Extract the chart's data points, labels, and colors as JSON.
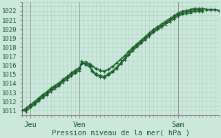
{
  "title": "Pression niveau de la mer( hPa )",
  "bg_color": "#cce8dc",
  "grid_color": "#aacfbe",
  "line_color": "#1a5c2a",
  "ylim": [
    1011,
    1022.5
  ],
  "ytick_vals": [
    1011,
    1012,
    1013,
    1014,
    1015,
    1016,
    1017,
    1018,
    1019,
    1020,
    1021,
    1022
  ],
  "xmax": 192,
  "day_ticks": [
    8,
    56,
    152
  ],
  "day_labels": [
    "Jeu",
    "Ven",
    "Sam"
  ],
  "day_vlines": [
    8,
    56,
    152
  ],
  "xlabel_fontsize": 7.5,
  "ylabel_fontsize": 6.5,
  "series": [
    {
      "x": [
        0,
        4,
        8,
        12,
        16,
        20,
        24,
        28,
        32,
        36,
        40,
        44,
        48,
        52,
        56,
        58,
        62,
        66,
        68,
        72,
        76,
        80,
        84,
        88,
        92,
        96,
        100,
        104,
        108,
        112,
        116,
        120,
        124,
        128,
        132,
        136,
        140,
        144,
        148,
        152,
        156,
        160,
        164,
        168,
        172,
        176,
        180,
        184,
        188,
        192
      ],
      "y": [
        1011.0,
        1011.3,
        1011.7,
        1012.0,
        1012.4,
        1012.8,
        1013.1,
        1013.5,
        1013.8,
        1014.1,
        1014.5,
        1014.8,
        1015.2,
        1015.5,
        1015.8,
        1016.2,
        1016.4,
        1016.2,
        1016.0,
        1015.7,
        1015.5,
        1015.4,
        1015.6,
        1015.9,
        1016.3,
        1016.7,
        1017.1,
        1017.6,
        1018.0,
        1018.4,
        1018.8,
        1019.2,
        1019.6,
        1020.0,
        1020.3,
        1020.6,
        1020.9,
        1021.2,
        1021.5,
        1021.8,
        1022.0,
        1022.1,
        1022.2,
        1022.3,
        1022.3,
        1022.3,
        1022.2,
        1022.2,
        1022.2,
        1022.1
      ]
    },
    {
      "x": [
        0,
        4,
        8,
        12,
        16,
        20,
        24,
        28,
        32,
        36,
        40,
        44,
        48,
        52,
        56,
        58,
        62,
        66,
        68,
        72,
        76,
        80,
        84,
        88,
        92,
        96,
        100,
        104,
        108,
        112,
        116,
        120,
        124,
        128,
        132,
        136,
        140,
        144,
        148,
        152,
        156,
        160,
        164,
        168,
        172,
        176,
        180,
        184,
        188,
        192
      ],
      "y": [
        1011.0,
        1011.2,
        1011.6,
        1011.9,
        1012.3,
        1012.7,
        1013.0,
        1013.4,
        1013.7,
        1014.0,
        1014.4,
        1014.7,
        1015.1,
        1015.4,
        1015.7,
        1016.1,
        1016.3,
        1016.1,
        1015.9,
        1015.6,
        1015.4,
        1015.3,
        1015.5,
        1015.8,
        1016.2,
        1016.6,
        1017.0,
        1017.5,
        1017.9,
        1018.3,
        1018.7,
        1019.1,
        1019.5,
        1019.9,
        1020.2,
        1020.5,
        1020.8,
        1021.1,
        1021.4,
        1021.7,
        1021.9,
        1022.0,
        1022.1,
        1022.2,
        1022.2,
        1022.2,
        1022.1,
        1022.1,
        1022.1,
        1022.0
      ]
    },
    {
      "x": [
        0,
        4,
        8,
        12,
        16,
        20,
        24,
        28,
        32,
        36,
        40,
        44,
        48,
        52,
        56,
        58,
        62,
        66,
        68,
        72,
        76,
        80,
        84,
        88,
        92,
        96,
        100,
        104,
        108,
        112,
        116,
        120,
        124,
        128,
        132,
        136,
        140,
        144,
        148,
        152,
        156,
        160,
        164,
        168,
        172,
        176
      ],
      "y": [
        1011.0,
        1011.1,
        1011.5,
        1011.8,
        1012.2,
        1012.6,
        1012.9,
        1013.3,
        1013.6,
        1013.9,
        1014.3,
        1014.6,
        1015.0,
        1015.3,
        1015.6,
        1016.3,
        1016.2,
        1016.0,
        1015.5,
        1015.1,
        1014.9,
        1014.8,
        1015.1,
        1015.4,
        1015.8,
        1016.3,
        1016.8,
        1017.3,
        1017.8,
        1018.2,
        1018.6,
        1019.0,
        1019.4,
        1019.8,
        1020.1,
        1020.4,
        1020.7,
        1021.0,
        1021.3,
        1021.6,
        1021.8,
        1021.9,
        1022.0,
        1022.1,
        1022.1,
        1022.1
      ]
    },
    {
      "x": [
        0,
        4,
        8,
        12,
        16,
        20,
        24,
        28,
        32,
        36,
        40,
        44,
        48,
        52,
        56,
        58,
        62,
        66,
        68,
        72,
        76,
        80,
        84,
        88,
        92,
        96,
        100,
        104,
        108,
        112,
        116,
        120,
        124,
        128,
        132,
        136,
        140,
        144,
        148,
        152,
        156,
        160,
        164,
        168,
        172,
        176
      ],
      "y": [
        1011.0,
        1011.0,
        1011.4,
        1011.7,
        1012.1,
        1012.5,
        1012.8,
        1013.2,
        1013.5,
        1013.8,
        1014.2,
        1014.5,
        1014.9,
        1015.2,
        1015.5,
        1016.4,
        1016.1,
        1015.9,
        1015.4,
        1015.0,
        1014.8,
        1014.7,
        1015.0,
        1015.3,
        1015.7,
        1016.2,
        1016.7,
        1017.2,
        1017.7,
        1018.1,
        1018.5,
        1018.9,
        1019.3,
        1019.7,
        1020.0,
        1020.3,
        1020.6,
        1020.9,
        1021.2,
        1021.5,
        1021.7,
        1021.8,
        1021.9,
        1022.0,
        1022.0,
        1022.0
      ]
    },
    {
      "x": [
        0,
        4,
        8,
        12,
        16,
        20,
        24,
        28,
        32,
        36,
        40,
        44,
        48,
        52,
        56,
        58,
        62,
        66,
        68,
        72,
        76,
        80,
        84,
        88,
        92,
        96,
        100,
        104,
        108,
        112,
        116,
        120,
        124,
        128,
        132,
        136,
        140,
        144,
        148,
        152,
        156,
        160,
        164,
        168,
        172,
        176
      ],
      "y": [
        1011.0,
        1010.9,
        1011.3,
        1011.6,
        1012.0,
        1012.4,
        1012.7,
        1013.1,
        1013.4,
        1013.7,
        1014.1,
        1014.4,
        1014.8,
        1015.1,
        1015.4,
        1016.5,
        1016.0,
        1015.8,
        1015.3,
        1014.9,
        1014.7,
        1014.6,
        1014.9,
        1015.2,
        1015.6,
        1016.1,
        1016.6,
        1017.1,
        1017.6,
        1018.0,
        1018.4,
        1018.8,
        1019.2,
        1019.6,
        1019.9,
        1020.2,
        1020.5,
        1020.8,
        1021.1,
        1021.4,
        1021.6,
        1021.7,
        1021.8,
        1021.9,
        1021.9,
        1021.9
      ]
    }
  ]
}
